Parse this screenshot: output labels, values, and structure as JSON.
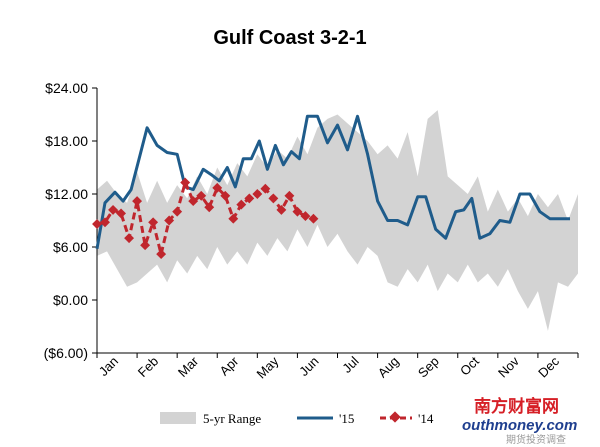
{
  "chart_data": {
    "type": "line",
    "title": "Gulf Coast  3-2-1",
    "xlabel": "",
    "ylabel": "",
    "ylim": [
      -6,
      24
    ],
    "yticks": [
      24,
      18,
      12,
      6,
      0,
      -6
    ],
    "ytick_labels": [
      "$24.00",
      "$18.00",
      "$12.00",
      "$6.00",
      "$0.00",
      "($6.00)"
    ],
    "xlim": [
      0,
      12
    ],
    "month_labels": [
      "Jan",
      "Feb",
      "Mar",
      "Apr",
      "May",
      "Jun",
      "Jul",
      "Aug",
      "Sep",
      "Oct",
      "Nov",
      "Dec"
    ],
    "grid": false,
    "legend": "bottom",
    "range": {
      "name": "5-yr Range",
      "color": "#d3d3d3",
      "x": [
        0,
        0.25,
        0.5,
        0.75,
        1.0,
        1.25,
        1.5,
        1.75,
        2.0,
        2.25,
        2.5,
        2.75,
        3.0,
        3.25,
        3.5,
        3.75,
        4.0,
        4.25,
        4.5,
        4.75,
        5.0,
        5.25,
        5.5,
        5.75,
        6.0,
        6.25,
        6.5,
        6.75,
        7.0,
        7.25,
        7.5,
        7.75,
        8.0,
        8.25,
        8.5,
        8.75,
        9.0,
        9.25,
        9.5,
        9.75,
        10.0,
        10.25,
        10.5,
        10.75,
        11.0,
        11.25,
        11.5,
        11.75,
        12.0
      ],
      "low": [
        5.0,
        5.5,
        3.5,
        1.5,
        2.0,
        3.0,
        4.0,
        2.0,
        4.5,
        3.0,
        5.0,
        3.5,
        6.0,
        4.0,
        5.5,
        4.0,
        6.5,
        5.0,
        7.0,
        5.5,
        8.0,
        6.0,
        8.5,
        6.0,
        7.5,
        5.5,
        4.0,
        6.0,
        5.0,
        2.0,
        1.5,
        3.5,
        2.0,
        4.0,
        1.0,
        3.0,
        2.0,
        4.0,
        2.0,
        3.0,
        1.5,
        3.5,
        1.0,
        -1.0,
        1.0,
        -3.5,
        2.0,
        1.5,
        3.0
      ],
      "high": [
        12.5,
        13.5,
        12.0,
        11.0,
        14.5,
        11.0,
        13.5,
        11.0,
        13.0,
        11.5,
        14.0,
        12.0,
        15.0,
        13.0,
        15.5,
        14.0,
        16.5,
        15.0,
        17.0,
        16.0,
        18.5,
        16.5,
        19.5,
        20.5,
        21.0,
        20.0,
        19.0,
        18.0,
        16.5,
        17.5,
        16.0,
        19.0,
        14.0,
        20.5,
        21.5,
        14.0,
        13.0,
        12.0,
        14.0,
        10.0,
        12.5,
        10.0,
        11.5,
        9.5,
        12.0,
        10.5,
        12.0,
        9.0,
        12.0
      ]
    },
    "series": [
      {
        "name": "'15",
        "color": "#1f5c8b",
        "style": "solid",
        "x": [
          0.0,
          0.2,
          0.45,
          0.65,
          0.85,
          1.05,
          1.25,
          1.5,
          1.75,
          2.0,
          2.2,
          2.4,
          2.65,
          2.85,
          3.05,
          3.25,
          3.45,
          3.65,
          3.85,
          4.05,
          4.25,
          4.45,
          4.65,
          4.85,
          5.05,
          5.25,
          5.5,
          5.75,
          6.0,
          6.25,
          6.5,
          6.75,
          7.0,
          7.25,
          7.5,
          7.75,
          8.0,
          8.2,
          8.45,
          8.7,
          8.95,
          9.15,
          9.35,
          9.55,
          9.8,
          10.05,
          10.3,
          10.55,
          10.8,
          11.05,
          11.3,
          11.55,
          11.8
        ],
        "values": [
          5.8,
          11.0,
          12.2,
          11.2,
          12.5,
          16.0,
          19.5,
          17.5,
          16.7,
          16.5,
          12.8,
          12.5,
          14.8,
          14.2,
          13.5,
          15.0,
          12.8,
          16.0,
          16.0,
          18.0,
          14.8,
          17.5,
          15.3,
          16.8,
          16.0,
          20.8,
          20.8,
          17.8,
          19.8,
          17.0,
          20.8,
          16.5,
          11.2,
          9.0,
          9.0,
          8.5,
          11.7,
          11.7,
          8.0,
          7.0,
          10.0,
          10.2,
          11.5,
          7.0,
          7.5,
          9.0,
          8.8,
          12.0,
          12.0,
          10.0,
          9.2,
          9.2,
          9.2
        ]
      },
      {
        "name": "'14",
        "color": "#c0262d",
        "style": "dashed",
        "x": [
          0.0,
          0.2,
          0.4,
          0.6,
          0.8,
          1.0,
          1.2,
          1.4,
          1.6,
          1.8,
          2.0,
          2.2,
          2.4,
          2.6,
          2.8,
          3.0,
          3.2,
          3.4,
          3.6,
          3.8,
          4.0,
          4.2,
          4.4,
          4.6,
          4.8,
          5.0,
          5.2,
          5.4
        ],
        "values": [
          8.6,
          8.8,
          10.2,
          9.8,
          7.0,
          11.2,
          6.2,
          8.8,
          5.2,
          9.0,
          10.0,
          13.3,
          11.2,
          11.8,
          10.5,
          12.7,
          11.8,
          9.2,
          10.8,
          11.5,
          12.0,
          12.6,
          11.5,
          10.2,
          11.8,
          10.0,
          9.5,
          9.2
        ]
      }
    ]
  },
  "watermark": {
    "brand_cn": "南方财富网",
    "brand_url": "outhmoney.com",
    "caption": "期货投资调查"
  }
}
